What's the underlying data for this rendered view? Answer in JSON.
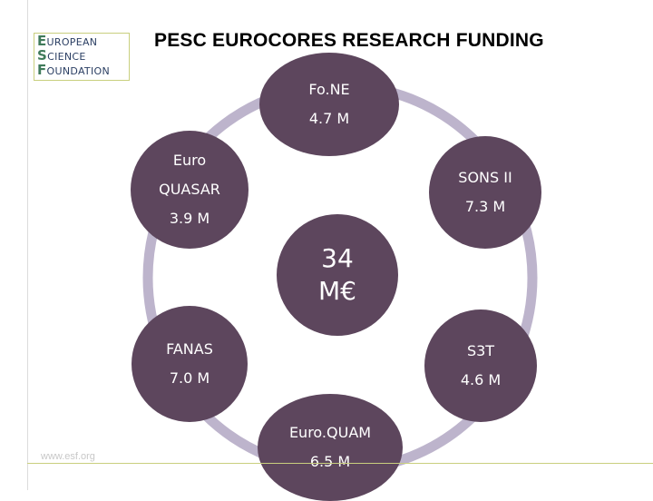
{
  "title": "PESC EUROCORES RESEARCH FUNDING",
  "logo": {
    "lines": [
      {
        "cap": "E",
        "rest": "UROPEAN"
      },
      {
        "cap": "S",
        "rest": "CIENCE"
      },
      {
        "cap": "F",
        "rest": "OUNDATION"
      }
    ]
  },
  "footer_url": "www.esf.org",
  "colors": {
    "node_fill": "#5d465d",
    "ring_stroke": "#bdb4cc",
    "node_text": "#ffffff",
    "accent_rule": "#c9cf7e"
  },
  "center": {
    "line1": "34",
    "line2": "M€"
  },
  "nodes": [
    {
      "id": "fone",
      "lines": [
        "Fo.NE",
        "4.7 M"
      ]
    },
    {
      "id": "sons",
      "lines": [
        "SONS II",
        "7.3 M"
      ]
    },
    {
      "id": "s3t",
      "lines": [
        "S3T",
        "4.6 M"
      ]
    },
    {
      "id": "euroquam",
      "lines": [
        "Euro.QUAM",
        "6.5 M"
      ]
    },
    {
      "id": "fanas",
      "lines": [
        "FANAS",
        "7.0 M"
      ]
    },
    {
      "id": "euroquasar",
      "lines": [
        "Euro",
        "QUASAR",
        "3.9 M"
      ]
    }
  ]
}
